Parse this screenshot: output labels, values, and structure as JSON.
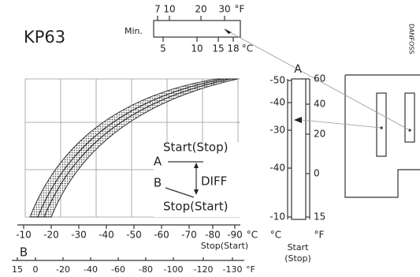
{
  "header": {
    "title": "KP63",
    "brand": "DANFOSS"
  },
  "range_scale": {
    "min_label": "Min.",
    "f_labels": [
      "7",
      "10",
      "20",
      "30"
    ],
    "f_unit": "°F",
    "c_labels": [
      "5",
      "10",
      "15",
      "18"
    ],
    "c_unit": "°C"
  },
  "vertical_scale": {
    "title": "A",
    "c_labels": [
      "-50",
      "-40",
      "-30",
      "-40",
      "-10"
    ],
    "f_labels": [
      "60",
      "40",
      "20",
      "0",
      "15"
    ],
    "c_unit": "°C",
    "f_unit": "°F",
    "caption": [
      "Start",
      "(Stop)"
    ]
  },
  "diagram": {
    "start_label": "Start(Stop)",
    "a_label": "A",
    "b_label": "B",
    "diff_label": "DIFF",
    "stop_label": "Stop(Start)"
  },
  "bottom_axis": {
    "title": "B",
    "c_labels": [
      "-10",
      "-20",
      "-30",
      "-40",
      "-50",
      "-60",
      "-70",
      "-80",
      "-90"
    ],
    "c_unit": "°C",
    "caption": "Stop(Start)",
    "f_labels": [
      "15",
      "0",
      "-20",
      "-40",
      "-60",
      "-80",
      "-100",
      "-120",
      "-130"
    ],
    "f_unit": "°F"
  }
}
